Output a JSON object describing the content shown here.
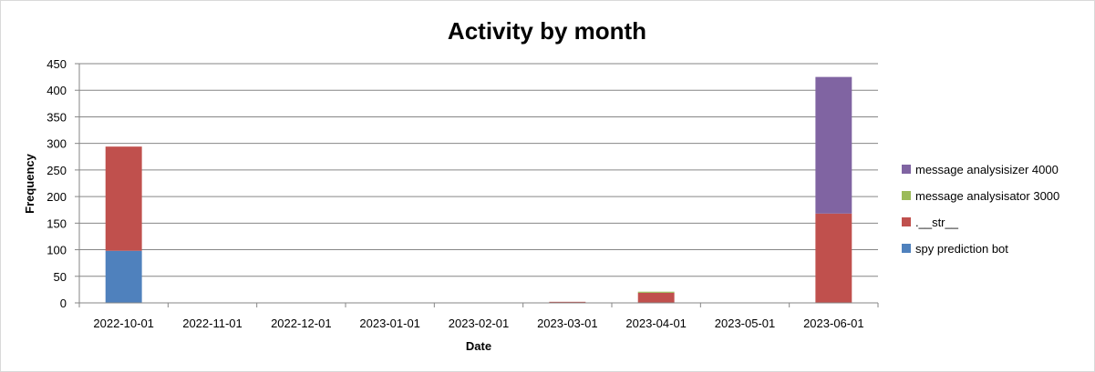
{
  "chart_data": {
    "type": "bar",
    "stacked": true,
    "title": "Activity by month",
    "xlabel": "Date",
    "ylabel": "Frequency",
    "ylim": [
      0,
      450
    ],
    "yticks": [
      0,
      50,
      100,
      150,
      200,
      250,
      300,
      350,
      400,
      450
    ],
    "grid": true,
    "legend_position": "right",
    "categories": [
      "2022-10-01",
      "2022-11-01",
      "2022-12-01",
      "2023-01-01",
      "2023-02-01",
      "2023-03-01",
      "2023-04-01",
      "2023-05-01",
      "2023-06-01"
    ],
    "series": [
      {
        "name": "spy prediction bot",
        "color": "#4f81bd",
        "values": [
          98,
          0,
          0,
          0,
          0,
          0,
          0,
          0,
          0
        ]
      },
      {
        "name": ".__str__",
        "color": "#c0504d",
        "values": [
          196,
          0,
          0,
          0,
          0,
          2,
          19,
          0,
          168
        ]
      },
      {
        "name": "message analysisator 3000",
        "color": "#9bbb59",
        "values": [
          0,
          0,
          0,
          0,
          0,
          0,
          2,
          0,
          0
        ]
      },
      {
        "name": "message analysisizer 4000",
        "color": "#8064a2",
        "values": [
          0,
          0,
          0,
          0,
          0,
          0,
          0,
          0,
          257
        ]
      }
    ]
  }
}
